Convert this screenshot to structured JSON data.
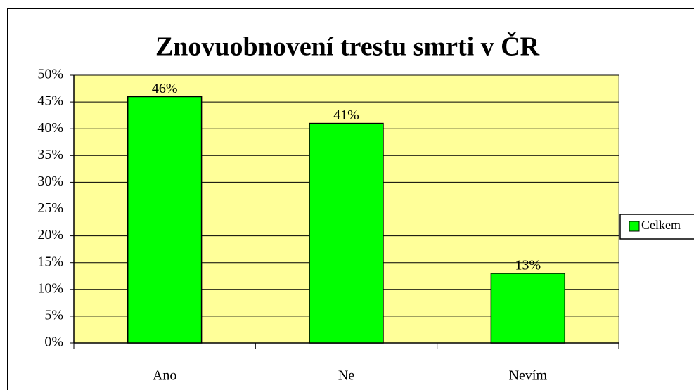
{
  "chart_data": {
    "type": "bar",
    "title": "Znovuobnovení trestu smrti v ČR",
    "categories": [
      "Ano",
      "Ne",
      "Nevím"
    ],
    "series": [
      {
        "name": "Celkem",
        "color": "#00ff00",
        "values": [
          46,
          41,
          13
        ],
        "value_labels": [
          "46%",
          "41%",
          "13%"
        ]
      }
    ],
    "ylim": [
      0,
      50
    ],
    "yticks": [
      {
        "value": 0,
        "label": "0%"
      },
      {
        "value": 5,
        "label": "5%"
      },
      {
        "value": 10,
        "label": "10%"
      },
      {
        "value": 15,
        "label": "15%"
      },
      {
        "value": 20,
        "label": "20%"
      },
      {
        "value": 25,
        "label": "25%"
      },
      {
        "value": 30,
        "label": "30%"
      },
      {
        "value": 35,
        "label": "35%"
      },
      {
        "value": 40,
        "label": "40%"
      },
      {
        "value": 45,
        "label": "45%"
      },
      {
        "value": 50,
        "label": "50%"
      }
    ],
    "grid": true,
    "legend": "right",
    "plot_background": "#ffff99"
  }
}
